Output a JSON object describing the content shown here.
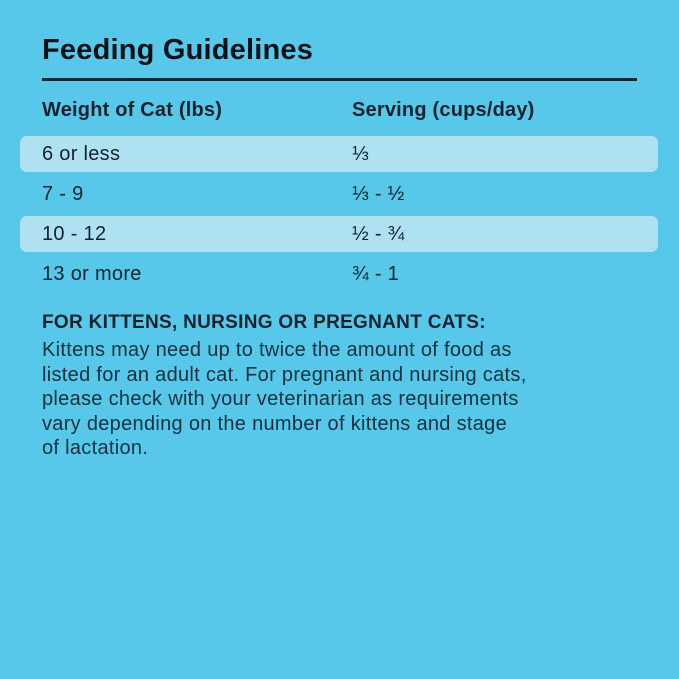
{
  "colors": {
    "background": "#57c8e9",
    "row_highlight": "#aee2f2",
    "title_text": "#0c1117",
    "table_text": "#11222e",
    "body_text": "#15313f",
    "rule": "#0d2636"
  },
  "title": "Feeding Guidelines",
  "table": {
    "headers": [
      "Weight of Cat (lbs)",
      "Serving (cups/day)"
    ],
    "rows": [
      {
        "weight": "6 or less",
        "serving": "⅓",
        "highlighted": true
      },
      {
        "weight": "7 - 9",
        "serving": "⅓ - ½",
        "highlighted": false
      },
      {
        "weight": "10 - 12",
        "serving": "½ - ¾",
        "highlighted": true
      },
      {
        "weight": "13 or more",
        "serving": "¾ - 1",
        "highlighted": false
      }
    ]
  },
  "note": {
    "heading": "FOR KITTENS, NURSING OR PREGNANT CATS:",
    "body": "Kittens may need up to twice the amount of food as\nlisted for an adult cat. For pregnant and nursing cats,\nplease check with your veterinarian as requirements\nvary depending on the number of kittens and stage\nof lactation."
  }
}
